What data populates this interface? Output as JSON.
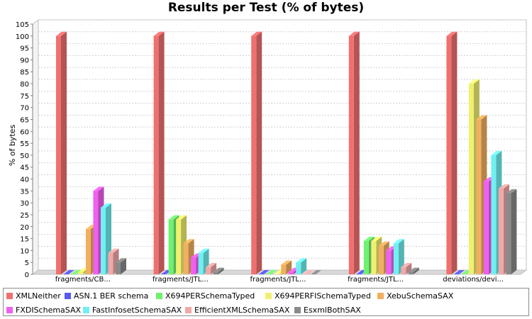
{
  "chart_data": {
    "type": "bar",
    "title": "Results per Test (% of bytes)",
    "xlabel": "",
    "ylabel": "% of bytes",
    "ylim": [
      0,
      105
    ],
    "ytick_step": 5,
    "grid": true,
    "legend_position": "bottom",
    "categories": [
      "fragments/CB...",
      "fragments/JTL...",
      "fragments/JTL...",
      "fragments/JTL...",
      "deviations/devi..."
    ],
    "series": [
      {
        "name": "XMLNeither",
        "color": "#f07070",
        "values": [
          100,
          100,
          100,
          100,
          100
        ]
      },
      {
        "name": "ASN.1 BER schema",
        "color": "#5a5af0",
        "values": [
          0,
          0,
          0,
          0,
          0
        ]
      },
      {
        "name": "X694PERSchemaTyped",
        "color": "#70f070",
        "values": [
          0,
          23,
          0,
          14,
          0
        ]
      },
      {
        "name": "X694PERFISchemaTyped",
        "color": "#f0f070",
        "values": [
          1,
          23,
          0,
          14,
          80
        ]
      },
      {
        "name": "XebuSchemaSAX",
        "color": "#f0b060",
        "values": [
          19,
          13,
          4,
          12,
          65
        ]
      },
      {
        "name": "FXDISchemaSAX",
        "color": "#f060f0",
        "values": [
          35,
          7,
          1,
          10,
          39
        ]
      },
      {
        "name": "FastInfosetSchemaSAX",
        "color": "#70f0f0",
        "values": [
          28,
          9,
          5,
          13,
          50
        ]
      },
      {
        "name": "EfficientXMLSchemaSAX",
        "color": "#f0a8a8",
        "values": [
          9,
          3,
          0,
          3,
          36
        ]
      },
      {
        "name": "EsxmlBothSAX",
        "color": "#8a8a8a",
        "values": [
          5,
          1,
          0,
          1,
          34
        ]
      }
    ]
  }
}
